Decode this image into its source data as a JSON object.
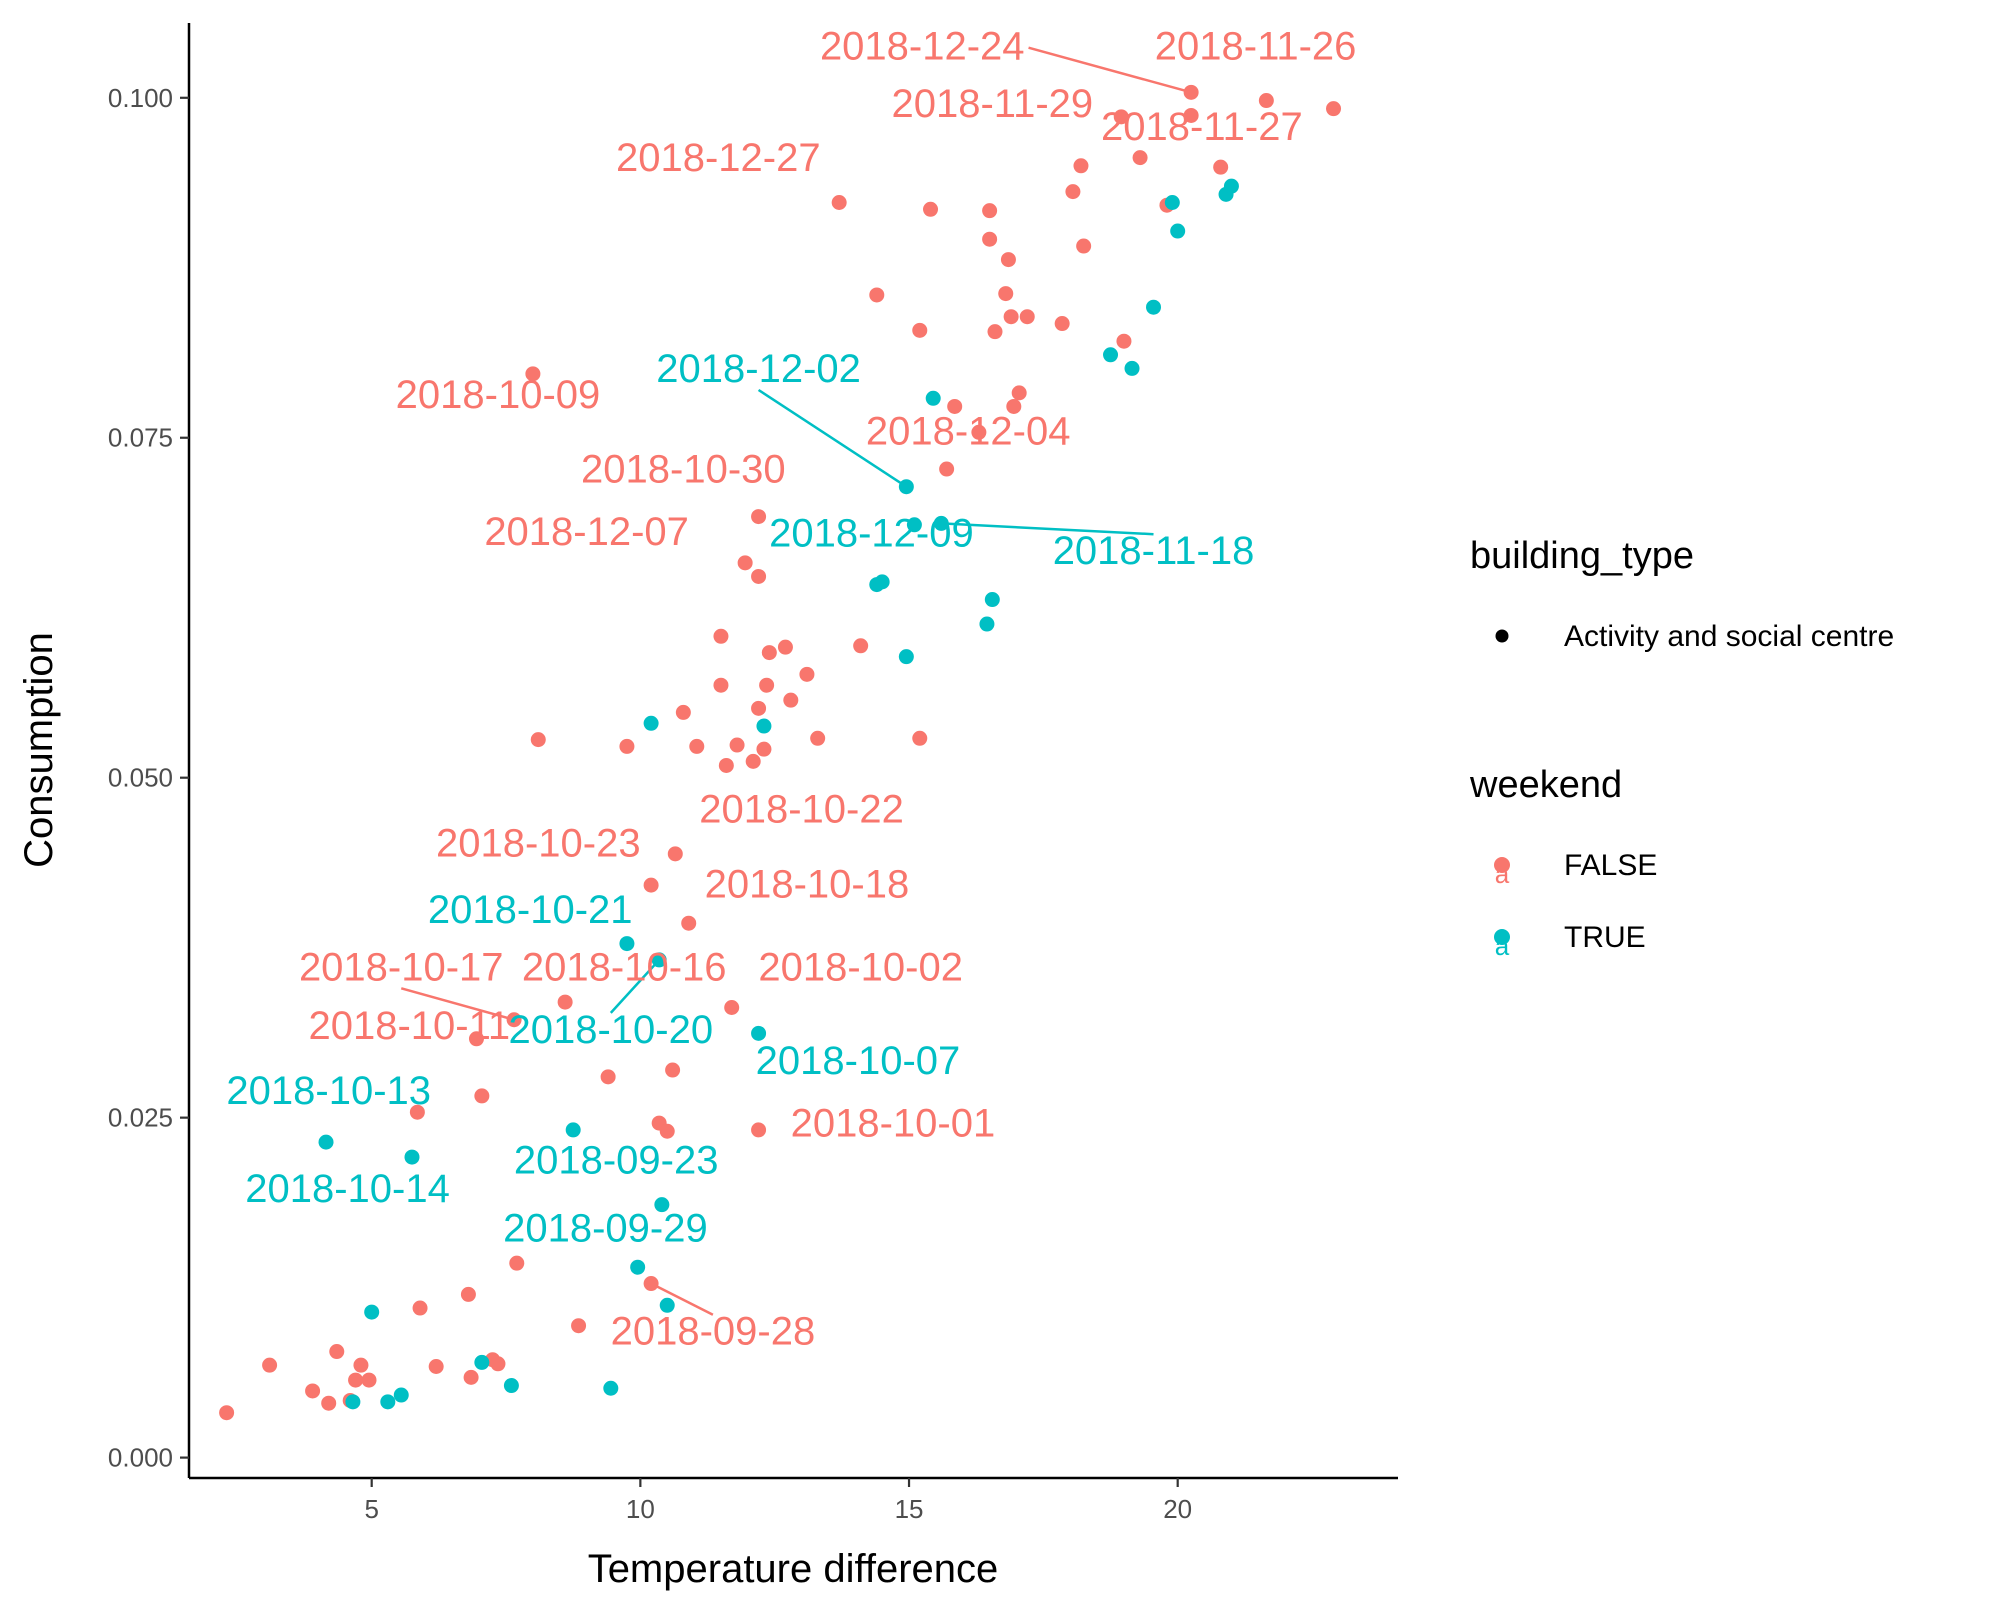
{
  "chart_data": {
    "type": "scatter",
    "xlabel": "Temperature difference",
    "ylabel": "Consumption",
    "xlim": [
      1.6,
      24.1
    ],
    "ylim": [
      -0.0015,
      0.1055
    ],
    "x_ticks": [
      5,
      10,
      15,
      20
    ],
    "x_tick_labels": [
      "5",
      "10",
      "15",
      "20"
    ],
    "y_ticks": [
      0,
      0.025,
      0.05,
      0.075,
      0.1
    ],
    "y_tick_labels": [
      "0.000",
      "0.025",
      "0.050",
      "0.075",
      "0.100"
    ],
    "grid": false,
    "legend_position": "right",
    "colors": {
      "FALSE": "#F8766D",
      "TRUE": "#00BFC4"
    },
    "legends": [
      {
        "title": "building_type",
        "items": [
          {
            "label": "Activity and social centre",
            "color": "#000000"
          }
        ]
      },
      {
        "title": "weekend",
        "items": [
          {
            "label": "FALSE",
            "color": "#F8766D"
          },
          {
            "label": "TRUE",
            "color": "#00BFC4"
          }
        ]
      }
    ],
    "series": [
      {
        "name": "FALSE",
        "color": "#F8766D",
        "points": [
          {
            "x": 2.3,
            "y": 0.0033
          },
          {
            "x": 3.1,
            "y": 0.0068
          },
          {
            "x": 3.9,
            "y": 0.0049
          },
          {
            "x": 4.2,
            "y": 0.004
          },
          {
            "x": 4.35,
            "y": 0.0078
          },
          {
            "x": 4.6,
            "y": 0.0042
          },
          {
            "x": 4.7,
            "y": 0.0057
          },
          {
            "x": 4.8,
            "y": 0.0068
          },
          {
            "x": 4.95,
            "y": 0.0057
          },
          {
            "x": 5.9,
            "y": 0.011
          },
          {
            "x": 6.2,
            "y": 0.0067
          },
          {
            "x": 6.8,
            "y": 0.012
          },
          {
            "x": 6.85,
            "y": 0.0059
          },
          {
            "x": 7.25,
            "y": 0.0072
          },
          {
            "x": 7.35,
            "y": 0.0069
          },
          {
            "x": 7.7,
            "y": 0.0143
          },
          {
            "x": 8.85,
            "y": 0.0097
          },
          {
            "x": 10.2,
            "y": 0.0128
          },
          {
            "x": 10.35,
            "y": 0.0246
          },
          {
            "x": 10.5,
            "y": 0.024
          },
          {
            "x": 10.6,
            "y": 0.0285
          },
          {
            "x": 9.4,
            "y": 0.028
          },
          {
            "x": 12.2,
            "y": 0.0241
          },
          {
            "x": 5.85,
            "y": 0.0254
          },
          {
            "x": 7.05,
            "y": 0.0266
          },
          {
            "x": 6.95,
            "y": 0.0308
          },
          {
            "x": 7.65,
            "y": 0.0322
          },
          {
            "x": 8.6,
            "y": 0.0335
          },
          {
            "x": 11.7,
            "y": 0.0331
          },
          {
            "x": 10.9,
            "y": 0.0393
          },
          {
            "x": 10.2,
            "y": 0.0421
          },
          {
            "x": 10.65,
            "y": 0.0444
          },
          {
            "x": 8.1,
            "y": 0.0528
          },
          {
            "x": 9.75,
            "y": 0.0523
          },
          {
            "x": 10.8,
            "y": 0.0548
          },
          {
            "x": 11.05,
            "y": 0.0523
          },
          {
            "x": 11.5,
            "y": 0.0568
          },
          {
            "x": 11.6,
            "y": 0.0509
          },
          {
            "x": 11.8,
            "y": 0.0524
          },
          {
            "x": 12.1,
            "y": 0.0512
          },
          {
            "x": 12.2,
            "y": 0.0551
          },
          {
            "x": 12.3,
            "y": 0.0521
          },
          {
            "x": 12.35,
            "y": 0.0568
          },
          {
            "x": 12.4,
            "y": 0.0592
          },
          {
            "x": 12.7,
            "y": 0.0596
          },
          {
            "x": 12.8,
            "y": 0.0557
          },
          {
            "x": 13.1,
            "y": 0.0576
          },
          {
            "x": 13.3,
            "y": 0.0529
          },
          {
            "x": 14.1,
            "y": 0.0597
          },
          {
            "x": 15.2,
            "y": 0.0529
          },
          {
            "x": 11.5,
            "y": 0.0604
          },
          {
            "x": 11.95,
            "y": 0.0658
          },
          {
            "x": 12.2,
            "y": 0.0648
          },
          {
            "x": 12.2,
            "y": 0.0692
          },
          {
            "x": 8.0,
            "y": 0.0797
          },
          {
            "x": 13.7,
            "y": 0.0923
          },
          {
            "x": 14.4,
            "y": 0.0855
          },
          {
            "x": 15.2,
            "y": 0.0829
          },
          {
            "x": 15.4,
            "y": 0.0918
          },
          {
            "x": 15.7,
            "y": 0.0727
          },
          {
            "x": 15.85,
            "y": 0.0773
          },
          {
            "x": 16.3,
            "y": 0.0754
          },
          {
            "x": 16.5,
            "y": 0.0896
          },
          {
            "x": 16.5,
            "y": 0.0917
          },
          {
            "x": 16.6,
            "y": 0.0828
          },
          {
            "x": 16.8,
            "y": 0.0856
          },
          {
            "x": 16.85,
            "y": 0.0881
          },
          {
            "x": 16.9,
            "y": 0.0839
          },
          {
            "x": 16.95,
            "y": 0.0773
          },
          {
            "x": 17.05,
            "y": 0.0783
          },
          {
            "x": 17.2,
            "y": 0.0839
          },
          {
            "x": 17.85,
            "y": 0.0834
          },
          {
            "x": 18.05,
            "y": 0.0931
          },
          {
            "x": 18.2,
            "y": 0.095
          },
          {
            "x": 18.25,
            "y": 0.0891
          },
          {
            "x": 18.95,
            "y": 0.0986
          },
          {
            "x": 19.0,
            "y": 0.0821
          },
          {
            "x": 19.3,
            "y": 0.0956
          },
          {
            "x": 19.8,
            "y": 0.0921
          },
          {
            "x": 20.25,
            "y": 0.1004
          },
          {
            "x": 20.25,
            "y": 0.0987
          },
          {
            "x": 20.8,
            "y": 0.0949
          },
          {
            "x": 21.65,
            "y": 0.0998
          },
          {
            "x": 22.9,
            "y": 0.0992
          }
        ]
      },
      {
        "name": "TRUE",
        "color": "#00BFC4",
        "points": [
          {
            "x": 4.15,
            "y": 0.0232
          },
          {
            "x": 4.65,
            "y": 0.0041
          },
          {
            "x": 5.0,
            "y": 0.0107
          },
          {
            "x": 5.3,
            "y": 0.0041
          },
          {
            "x": 5.55,
            "y": 0.0046
          },
          {
            "x": 5.75,
            "y": 0.0221
          },
          {
            "x": 7.05,
            "y": 0.007
          },
          {
            "x": 7.6,
            "y": 0.0053
          },
          {
            "x": 8.75,
            "y": 0.0241
          },
          {
            "x": 9.45,
            "y": 0.0051
          },
          {
            "x": 9.75,
            "y": 0.0378
          },
          {
            "x": 9.95,
            "y": 0.014
          },
          {
            "x": 10.2,
            "y": 0.054
          },
          {
            "x": 10.35,
            "y": 0.0366
          },
          {
            "x": 10.4,
            "y": 0.0186
          },
          {
            "x": 10.5,
            "y": 0.0112
          },
          {
            "x": 12.2,
            "y": 0.0312
          },
          {
            "x": 12.3,
            "y": 0.0538
          },
          {
            "x": 14.4,
            "y": 0.0642
          },
          {
            "x": 14.5,
            "y": 0.0644
          },
          {
            "x": 14.95,
            "y": 0.0589
          },
          {
            "x": 14.95,
            "y": 0.0714
          },
          {
            "x": 15.1,
            "y": 0.0686
          },
          {
            "x": 15.45,
            "y": 0.0779
          },
          {
            "x": 15.6,
            "y": 0.0687
          },
          {
            "x": 16.45,
            "y": 0.0613
          },
          {
            "x": 16.55,
            "y": 0.0631
          },
          {
            "x": 18.75,
            "y": 0.0811
          },
          {
            "x": 19.15,
            "y": 0.0801
          },
          {
            "x": 19.55,
            "y": 0.0846
          },
          {
            "x": 19.9,
            "y": 0.0923
          },
          {
            "x": 20.0,
            "y": 0.0902
          },
          {
            "x": 20.9,
            "y": 0.0929
          },
          {
            "x": 21.0,
            "y": 0.0935
          }
        ]
      }
    ],
    "annotations": [
      {
        "text": "2018-12-24",
        "series": "FALSE",
        "x": 17.15,
        "y": 0.1028,
        "anchor": "end",
        "point_x": 20.25,
        "point_y": 0.1004
      },
      {
        "text": "2018-11-26",
        "series": "FALSE",
        "x": 21.45,
        "y": 0.1028,
        "anchor": "middle"
      },
      {
        "text": "2018-11-29",
        "series": "FALSE",
        "x": 16.55,
        "y": 0.0986,
        "anchor": "middle"
      },
      {
        "text": "2018-11-27",
        "series": "FALSE",
        "x": 20.45,
        "y": 0.0969,
        "anchor": "middle"
      },
      {
        "text": "2018-12-27",
        "series": "FALSE",
        "x": 11.45,
        "y": 0.0946,
        "anchor": "middle"
      },
      {
        "text": "2018-12-02",
        "series": "TRUE",
        "x": 12.2,
        "y": 0.0791,
        "anchor": "middle",
        "point_x": 14.95,
        "point_y": 0.0714
      },
      {
        "text": "2018-10-09",
        "series": "FALSE",
        "x": 7.35,
        "y": 0.0772,
        "anchor": "middle"
      },
      {
        "text": "2018-12-04",
        "series": "FALSE",
        "x": 16.1,
        "y": 0.0745,
        "anchor": "middle"
      },
      {
        "text": "2018-10-30",
        "series": "FALSE",
        "x": 10.8,
        "y": 0.0717,
        "anchor": "middle"
      },
      {
        "text": "2018-12-07",
        "series": "FALSE",
        "x": 9.0,
        "y": 0.0671,
        "anchor": "middle"
      },
      {
        "text": "2018-12-09",
        "series": "TRUE",
        "x": 14.3,
        "y": 0.067,
        "anchor": "middle"
      },
      {
        "text": "2018-11-18",
        "series": "TRUE",
        "x": 19.55,
        "y": 0.0657,
        "anchor": "middle",
        "point_x": 15.6,
        "point_y": 0.0687
      },
      {
        "text": "2018-10-22",
        "series": "FALSE",
        "x": 13.0,
        "y": 0.0467,
        "anchor": "middle"
      },
      {
        "text": "2018-10-23",
        "series": "FALSE",
        "x": 8.1,
        "y": 0.0442,
        "anchor": "middle"
      },
      {
        "text": "2018-10-18",
        "series": "FALSE",
        "x": 13.1,
        "y": 0.0412,
        "anchor": "middle"
      },
      {
        "text": "2018-10-21",
        "series": "TRUE",
        "x": 7.95,
        "y": 0.0393,
        "anchor": "middle"
      },
      {
        "text": "2018-10-17",
        "series": "FALSE",
        "x": 5.55,
        "y": 0.0351,
        "anchor": "middle",
        "point_x": 7.65,
        "point_y": 0.0322
      },
      {
        "text": "2018-10-16",
        "series": "FALSE",
        "x": 9.7,
        "y": 0.0351,
        "anchor": "middle"
      },
      {
        "text": "2018-10-02",
        "series": "FALSE",
        "x": 14.1,
        "y": 0.0351,
        "anchor": "middle"
      },
      {
        "text": "2018-10-11",
        "series": "FALSE",
        "x": 5.7,
        "y": 0.0308,
        "anchor": "middle"
      },
      {
        "text": "2018-10-20",
        "series": "TRUE",
        "x": 9.45,
        "y": 0.0305,
        "anchor": "middle",
        "point_x": 10.35,
        "point_y": 0.0366
      },
      {
        "text": "2018-10-07",
        "series": "TRUE",
        "x": 14.05,
        "y": 0.0282,
        "anchor": "middle"
      },
      {
        "text": "2018-10-13",
        "series": "TRUE",
        "x": 4.2,
        "y": 0.026,
        "anchor": "middle"
      },
      {
        "text": "2018-10-01",
        "series": "FALSE",
        "x": 14.7,
        "y": 0.0236,
        "anchor": "middle"
      },
      {
        "text": "2018-09-23",
        "series": "TRUE",
        "x": 9.55,
        "y": 0.0209,
        "anchor": "middle"
      },
      {
        "text": "2018-10-14",
        "series": "TRUE",
        "x": 4.55,
        "y": 0.0188,
        "anchor": "middle"
      },
      {
        "text": "2018-09-29",
        "series": "TRUE",
        "x": 9.35,
        "y": 0.0159,
        "anchor": "middle"
      },
      {
        "text": "2018-09-28",
        "series": "FALSE",
        "x": 11.35,
        "y": 0.0083,
        "anchor": "middle",
        "point_x": 10.2,
        "point_y": 0.0128
      }
    ]
  }
}
